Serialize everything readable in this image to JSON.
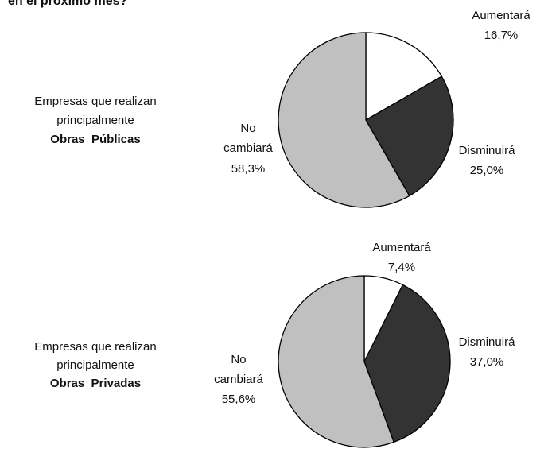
{
  "title": "en el próximo mes?",
  "chart_data": [
    {
      "type": "pie",
      "group_label": [
        "Empresas que realizan",
        "principalmente",
        "Obras  Públicas"
      ],
      "categories": [
        "Aumentará",
        "Disminuirá",
        "No cambiará"
      ],
      "values": [
        16.7,
        25.0,
        58.3
      ],
      "value_labels": [
        "16,7%",
        "25,0%",
        "58,3%"
      ],
      "colors": [
        "#ffffff",
        "#333333",
        "#c0c0c0"
      ]
    },
    {
      "type": "pie",
      "group_label": [
        "Empresas que realizan",
        "principalmente",
        "Obras  Privadas"
      ],
      "categories": [
        "Aumentará",
        "Disminuirá",
        "No cambiará"
      ],
      "values": [
        7.4,
        37.0,
        55.6
      ],
      "value_labels": [
        "7,4%",
        "37,0%",
        "55,6%"
      ],
      "colors": [
        "#ffffff",
        "#333333",
        "#c0c0c0"
      ]
    }
  ]
}
